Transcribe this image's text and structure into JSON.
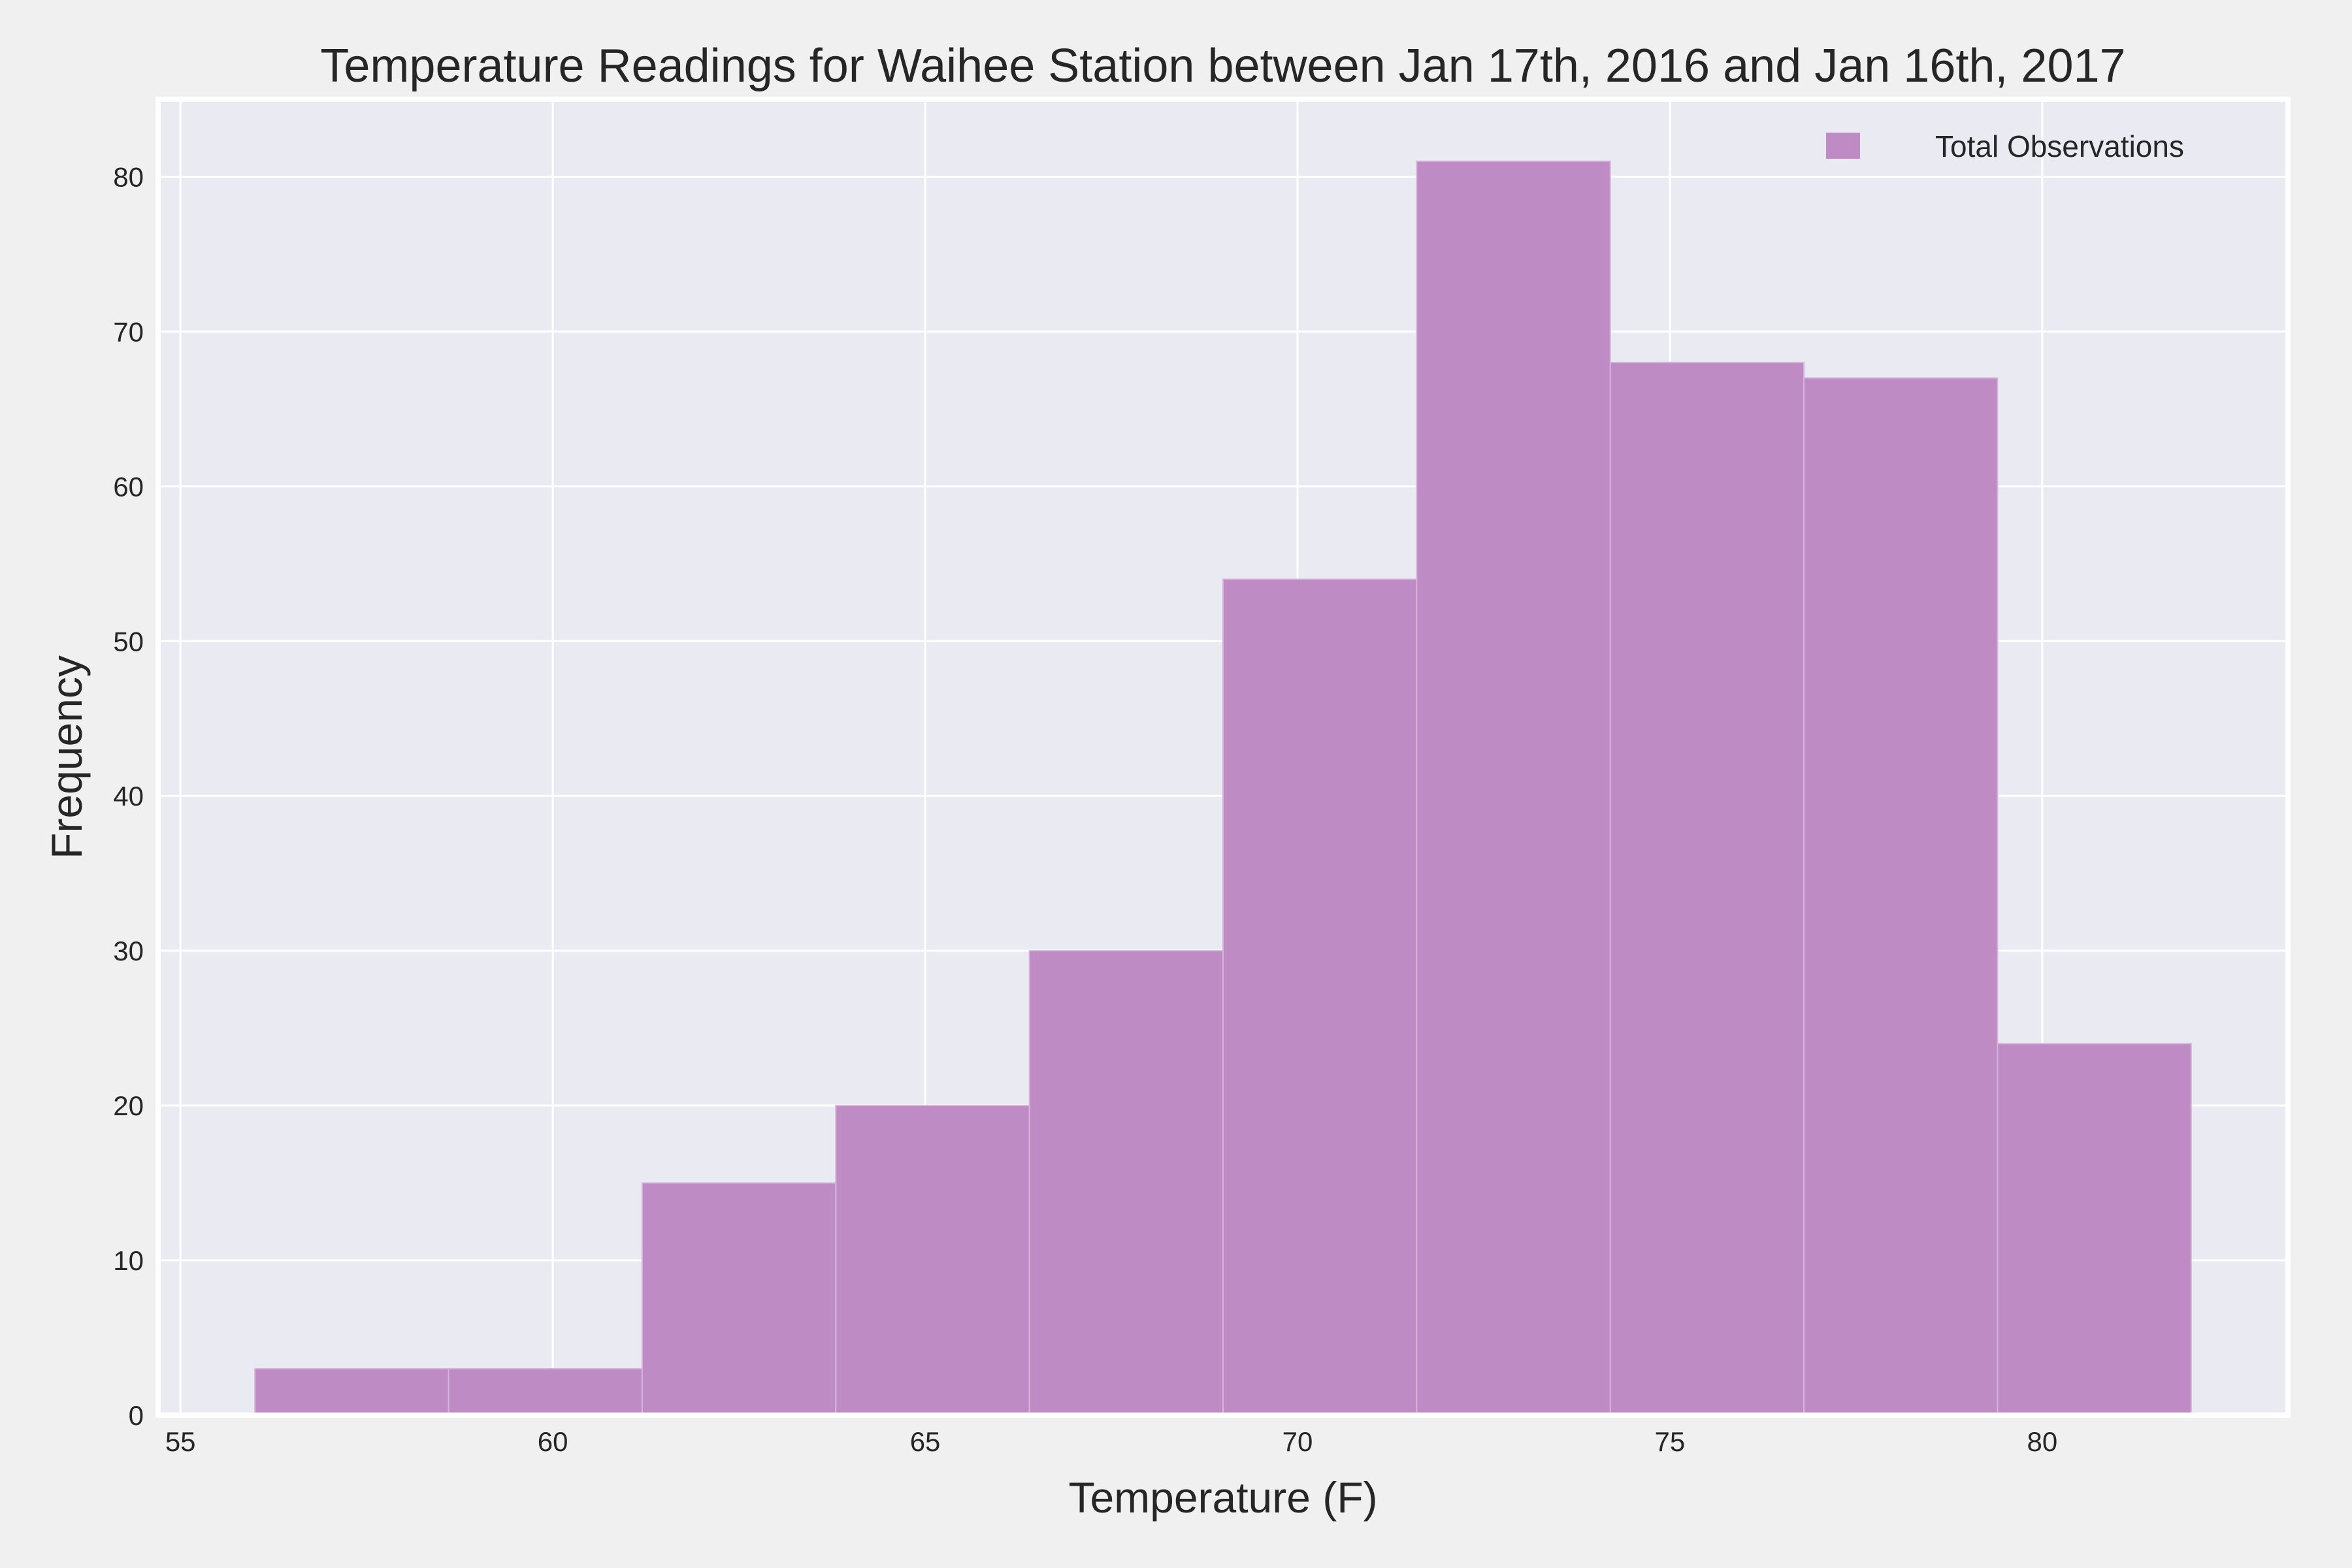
{
  "chart_data": {
    "type": "bar",
    "histogram": true,
    "title": "Temperature Readings for Waihee Station between Jan 17th, 2016 and Jan 16th, 2017",
    "xlabel": "Temperature (F)",
    "ylabel": "Frequency",
    "bin_edges": [
      56,
      58.6,
      61.2,
      63.8,
      66.4,
      69,
      71.6,
      74.2,
      76.8,
      79.4,
      82
    ],
    "values": [
      3,
      3,
      15,
      20,
      30,
      54,
      81,
      68,
      67,
      24
    ],
    "xlim": [
      54.7,
      83.3
    ],
    "ylim": [
      0,
      85
    ],
    "xticks": [
      55,
      60,
      65,
      70,
      75,
      80
    ],
    "yticks": [
      0,
      10,
      20,
      30,
      40,
      50,
      60,
      70,
      80
    ],
    "grid": true,
    "legend": {
      "position": "top-right",
      "entries": [
        "Total Observations"
      ]
    },
    "colors": {
      "bar": "#bf8bc4",
      "bar_edge": "#d6b4dc",
      "plot_bg": "#eaeaf2",
      "grid": "#ffffff",
      "figure_bg": "#f0f0f0",
      "text": "#262626"
    }
  }
}
